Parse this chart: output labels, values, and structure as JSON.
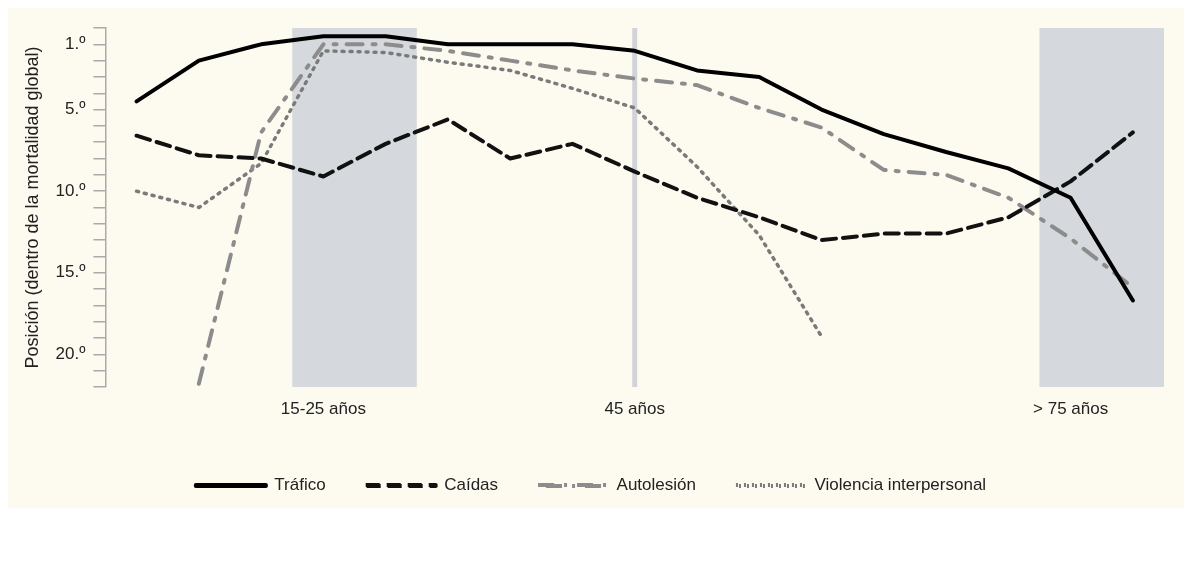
{
  "chart_data": {
    "type": "line",
    "ylabel": "Posición (dentro de la mortalidad global)",
    "categories": [
      null,
      null,
      null,
      "15-25 años",
      null,
      null,
      null,
      null,
      "45 años",
      null,
      null,
      null,
      null,
      null,
      null,
      "> 75 años",
      null
    ],
    "ylim": [
      22,
      0
    ],
    "yticks": [
      {
        "value": 0,
        "label": null
      },
      {
        "value": 1,
        "label": "1.º"
      },
      {
        "value": 2,
        "label": null
      },
      {
        "value": 3,
        "label": null
      },
      {
        "value": 4,
        "label": null
      },
      {
        "value": 5,
        "label": "5.º"
      },
      {
        "value": 6,
        "label": null
      },
      {
        "value": 7,
        "label": null
      },
      {
        "value": 8,
        "label": null
      },
      {
        "value": 9,
        "label": null
      },
      {
        "value": 10,
        "label": "10.º"
      },
      {
        "value": 11,
        "label": null
      },
      {
        "value": 12,
        "label": null
      },
      {
        "value": 13,
        "label": null
      },
      {
        "value": 14,
        "label": null
      },
      {
        "value": 15,
        "label": "15.º"
      },
      {
        "value": 16,
        "label": null
      },
      {
        "value": 17,
        "label": null
      },
      {
        "value": 18,
        "label": null
      },
      {
        "value": 19,
        "label": null
      },
      {
        "value": 20,
        "label": "20.º"
      },
      {
        "value": 21,
        "label": null
      },
      {
        "value": 22,
        "label": null
      }
    ],
    "grid": false,
    "legend": "bottom",
    "marker": "none",
    "ref_lines": [
      {
        "axis": "x",
        "value": "45 años",
        "color": "#d0d4d8"
      }
    ],
    "series": [
      {
        "name": "Tráfico",
        "color": "#000000",
        "line_style": "solid",
        "values": [
          4.5,
          2.0,
          1.0,
          0.5,
          0.5,
          1.0,
          1.0,
          1.0,
          1.4,
          2.6,
          3.0,
          5.0,
          6.5,
          7.6,
          8.6,
          10.4,
          16.7
        ]
      },
      {
        "name": "Caídas",
        "color": "#111111",
        "line_style": "dashed",
        "values": [
          6.6,
          7.8,
          8.0,
          9.1,
          7.1,
          5.6,
          8.0,
          7.1,
          8.8,
          10.4,
          11.6,
          13.0,
          12.6,
          12.6,
          11.6,
          9.4,
          6.4
        ]
      },
      {
        "name": "Autolesión",
        "color": "#8c8c8c",
        "line_style": "dashdot",
        "values": [
          null,
          21.8,
          6.4,
          1.0,
          1.0,
          1.4,
          2.0,
          2.6,
          3.1,
          3.5,
          4.9,
          6.1,
          8.7,
          9.0,
          10.4,
          12.9,
          15.9
        ]
      },
      {
        "name": "Violencia interpersonal",
        "color": "#7a7a7a",
        "line_style": "dotted",
        "values": [
          10.0,
          11.0,
          8.3,
          1.4,
          1.5,
          2.1,
          2.6,
          3.7,
          4.9,
          8.5,
          12.7,
          18.9,
          null,
          null,
          null,
          null,
          null
        ]
      }
    ]
  }
}
